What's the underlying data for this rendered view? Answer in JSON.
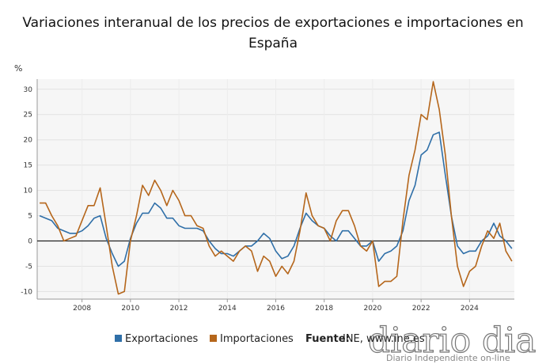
{
  "chart_data": {
    "type": "line",
    "title": "Variaciones interanual de los precios de exportaciones e importaciones en España",
    "y_label": "%",
    "x": [
      2006.25,
      2006.5,
      2006.75,
      2007,
      2007.25,
      2007.5,
      2007.75,
      2008,
      2008.25,
      2008.5,
      2008.75,
      2009,
      2009.25,
      2009.5,
      2009.75,
      2010,
      2010.25,
      2010.5,
      2010.75,
      2011,
      2011.25,
      2011.5,
      2011.75,
      2012,
      2012.25,
      2012.5,
      2012.75,
      2013,
      2013.25,
      2013.5,
      2013.75,
      2014,
      2014.25,
      2014.5,
      2014.75,
      2015,
      2015.25,
      2015.5,
      2015.75,
      2016,
      2016.25,
      2016.5,
      2016.75,
      2017,
      2017.25,
      2017.5,
      2017.75,
      2018,
      2018.25,
      2018.5,
      2018.75,
      2019,
      2019.25,
      2019.5,
      2019.75,
      2020,
      2020.25,
      2020.5,
      2020.75,
      2021,
      2021.25,
      2021.5,
      2021.75,
      2022,
      2022.25,
      2022.5,
      2022.75,
      2023,
      2023.25,
      2023.5,
      2023.75,
      2024,
      2024.25,
      2024.5,
      2024.75,
      2025,
      2025.25,
      2025.5,
      2025.75
    ],
    "series": [
      {
        "name": "Exportaciones",
        "color": "#2f6fa8",
        "values": [
          5,
          4.5,
          4,
          2.5,
          2,
          1.5,
          1.5,
          2,
          3,
          4.5,
          5,
          0.5,
          -2.5,
          -5,
          -4,
          0.5,
          3.5,
          5.5,
          5.5,
          7.5,
          6.5,
          4.5,
          4.5,
          3,
          2.5,
          2.5,
          2.5,
          2,
          0,
          -1.5,
          -2.5,
          -2.5,
          -3,
          -2,
          -1,
          -1,
          0,
          1.5,
          0.5,
          -2,
          -3.5,
          -3,
          -1,
          2.5,
          5.5,
          4,
          3,
          2.5,
          1,
          0,
          2,
          2,
          0.5,
          -1,
          -1,
          0,
          -4,
          -2.5,
          -2,
          -1,
          2,
          8,
          11,
          17,
          18,
          21,
          21.5,
          13,
          5,
          -1,
          -2.5,
          -2,
          -2,
          0,
          1,
          3.5,
          1,
          0,
          -1.5
        ]
      },
      {
        "name": "Importaciones",
        "color": "#b5661b",
        "values": [
          7.5,
          7.5,
          5,
          3,
          0,
          0.5,
          1,
          4,
          7,
          7,
          10.5,
          3,
          -5,
          -10.5,
          -10,
          0,
          5,
          11,
          9,
          12,
          10,
          7,
          10,
          8,
          5,
          5,
          3,
          2.5,
          -1,
          -3,
          -2,
          -3,
          -4,
          -2,
          -1,
          -2,
          -6,
          -3,
          -4,
          -7,
          -5,
          -6.5,
          -4,
          2,
          9.5,
          5,
          3,
          2.5,
          0,
          4,
          6,
          6,
          3,
          -1,
          -2,
          0,
          -9,
          -8,
          -8,
          -7,
          4,
          13,
          18,
          25,
          24,
          31.5,
          26,
          17,
          5,
          -5,
          -9,
          -6,
          -5,
          -1,
          2,
          0.5,
          3.5,
          -2,
          -4
        ]
      }
    ],
    "xlim": [
      2006.15,
      2025.85
    ],
    "xticks": [
      2008,
      2010,
      2012,
      2014,
      2016,
      2018,
      2020,
      2022,
      2024
    ],
    "ylim": [
      -11.5,
      32
    ],
    "yticks": [
      -10,
      -5,
      0,
      5,
      10,
      15,
      20,
      25,
      30
    ],
    "grid": true,
    "legend": "bottom",
    "source_label": "Fuente:",
    "source": "INE, www.ine.es",
    "watermark": "diario dia",
    "watermark_sub": "Diario Independiente on-line"
  }
}
